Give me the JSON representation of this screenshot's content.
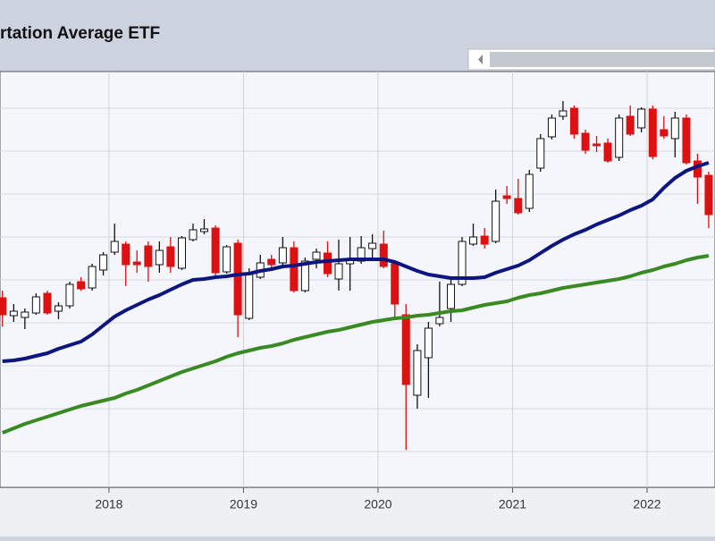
{
  "chart_data": {
    "type": "candlestick",
    "title": "rtation Average ETF",
    "x": [
      2017.208,
      2017.292,
      2017.375,
      2017.458,
      2017.542,
      2017.625,
      2017.708,
      2017.792,
      2017.875,
      2017.958,
      2018.042,
      2018.125,
      2018.208,
      2018.292,
      2018.375,
      2018.458,
      2018.542,
      2018.625,
      2018.708,
      2018.792,
      2018.875,
      2018.958,
      2019.042,
      2019.125,
      2019.208,
      2019.292,
      2019.375,
      2019.458,
      2019.542,
      2019.625,
      2019.708,
      2019.792,
      2019.875,
      2019.958,
      2020.042,
      2020.125,
      2020.208,
      2020.292,
      2020.375,
      2020.458,
      2020.542,
      2020.625,
      2020.708,
      2020.792,
      2020.875,
      2020.958,
      2021.042,
      2021.125,
      2021.208,
      2021.292,
      2021.375,
      2021.458,
      2021.542,
      2021.625,
      2021.708,
      2021.792,
      2021.875,
      2021.958,
      2022.042,
      2022.125,
      2022.208,
      2022.292,
      2022.375,
      2022.458
    ],
    "open": [
      212,
      192,
      190,
      195,
      217,
      197,
      203,
      230,
      223,
      243,
      263,
      272,
      252,
      270,
      249,
      269,
      245,
      277,
      286,
      290,
      241,
      273,
      189,
      235,
      255,
      251,
      268,
      220,
      255,
      262,
      233,
      250,
      253,
      267,
      272,
      250,
      193,
      103,
      145,
      183,
      200,
      227,
      272,
      281,
      275,
      326,
      323,
      312,
      357,
      392,
      415,
      424,
      396,
      384,
      385,
      369,
      415,
      402,
      423,
      400,
      390,
      413,
      365,
      349
    ],
    "close": [
      193,
      197,
      196,
      213,
      195,
      203,
      227,
      222,
      247,
      260,
      275,
      249,
      249,
      247,
      265,
      247,
      279,
      288,
      289,
      240,
      269,
      193,
      240,
      251,
      249,
      268,
      220,
      253,
      263,
      239,
      250,
      255,
      268,
      273,
      247,
      205,
      115,
      153,
      178,
      190,
      227,
      275,
      280,
      272,
      320,
      323,
      307,
      350,
      390,
      413,
      421,
      395,
      377,
      382,
      365,
      413,
      395,
      423,
      370,
      393,
      413,
      363,
      347,
      305
    ],
    "high": [
      220,
      205,
      200,
      217,
      220,
      207,
      230,
      235,
      250,
      263,
      295,
      275,
      265,
      275,
      275,
      280,
      281,
      295,
      300,
      293,
      271,
      277,
      245,
      260,
      260,
      280,
      275,
      257,
      267,
      275,
      277,
      280,
      281,
      283,
      287,
      253,
      205,
      160,
      185,
      230,
      233,
      280,
      295,
      290,
      333,
      337,
      345,
      355,
      395,
      417,
      432,
      427,
      400,
      393,
      390,
      417,
      427,
      425,
      427,
      415,
      420,
      417,
      373,
      353
    ],
    "low": [
      180,
      185,
      177,
      193,
      193,
      188,
      200,
      220,
      220,
      237,
      260,
      225,
      240,
      230,
      240,
      240,
      243,
      275,
      283,
      237,
      239,
      168,
      187,
      233,
      245,
      248,
      218,
      218,
      245,
      235,
      220,
      220,
      250,
      255,
      245,
      190,
      42,
      88,
      100,
      180,
      185,
      225,
      270,
      267,
      273,
      317,
      305,
      308,
      353,
      389,
      411,
      390,
      373,
      375,
      363,
      365,
      393,
      397,
      367,
      390,
      369,
      361,
      317,
      290
    ],
    "up_color": "#ffffff",
    "down_color": "#dd1111",
    "series": [
      {
        "color": "#0d1580",
        "values": [
          141,
          142,
          144,
          147,
          150,
          155,
          159,
          163,
          171,
          181,
          191,
          198,
          204,
          210,
          215,
          221,
          227,
          232,
          233,
          235,
          236,
          238,
          239,
          242,
          244,
          247,
          248,
          250,
          252,
          253,
          254,
          255,
          255,
          255,
          255,
          252,
          247,
          242,
          238,
          236,
          234,
          234,
          234,
          235,
          240,
          244,
          248,
          254,
          262,
          270,
          277,
          283,
          288,
          294,
          299,
          304,
          310,
          315,
          322,
          335,
          346,
          354,
          359,
          363
        ]
      },
      {
        "color": "#3a8a22",
        "values": [
          61,
          66,
          71,
          75,
          79,
          83,
          87,
          91,
          94,
          97,
          100,
          105,
          109,
          114,
          119,
          124,
          129,
          133,
          137,
          141,
          146,
          150,
          153,
          156,
          158,
          161,
          165,
          168,
          171,
          174,
          176,
          179,
          182,
          185,
          187,
          189,
          190,
          192,
          193,
          195,
          197,
          198,
          201,
          204,
          206,
          208,
          212,
          215,
          217,
          220,
          223,
          225,
          227,
          229,
          231,
          233,
          236,
          240,
          243,
          247,
          250,
          254,
          257,
          259
        ]
      }
    ],
    "xlim": [
      2017.19,
      2022.505
    ],
    "xticks": [
      2018,
      2019,
      2020,
      2021,
      2022
    ],
    "ylim": [
      0,
      465
    ],
    "ygrid": [
      40,
      88,
      136,
      184,
      232,
      280,
      328,
      376,
      424
    ],
    "grid": true
  }
}
